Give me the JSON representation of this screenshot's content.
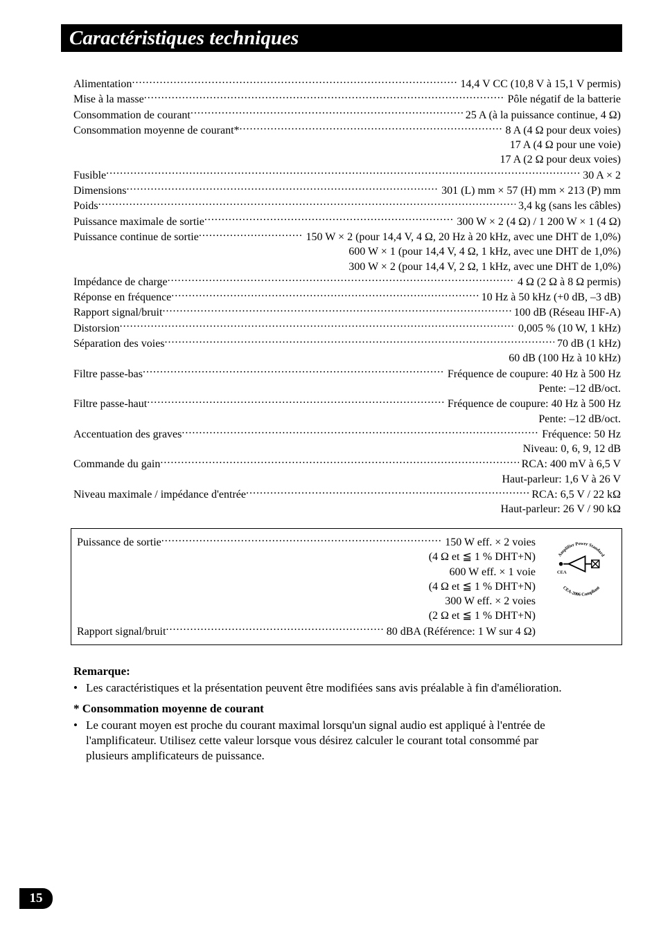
{
  "title": "Caractéristiques techniques",
  "page_number": "15",
  "specs": [
    {
      "label": "Alimentation ",
      "value": " 14,4 V CC (10,8 V à 15,1 V permis)"
    },
    {
      "label": "Mise à la masse ",
      "value": " Pôle négatif de la batterie"
    },
    {
      "label": "Consommation de courant ",
      "value": " 25 A (à la puissance continue, 4 Ω)"
    },
    {
      "label": "Consommation moyenne de courant* ",
      "value": " 8 A (4 Ω pour deux voies)",
      "cont": [
        "17 A (4 Ω pour une voie)",
        "17 A (2 Ω pour deux voies)"
      ]
    },
    {
      "label": "Fusible ",
      "value": " 30 A × 2"
    },
    {
      "label": "Dimensions ",
      "value": " 301 (L) mm × 57 (H) mm × 213 (P) mm"
    },
    {
      "label": "Poids ",
      "value": " 3,4 kg (sans les câbles)"
    },
    {
      "label": "Puissance maximale de sortie ",
      "value": " 300 W × 2 (4 Ω) / 1 200 W × 1 (4 Ω)"
    },
    {
      "label": "Puissance continue de sortie ",
      "value": " 150 W × 2 (pour 14,4 V, 4 Ω, 20 Hz à 20 kHz, avec une DHT de 1,0%)",
      "cont": [
        "600 W × 1 (pour 14,4 V, 4 Ω, 1 kHz, avec une DHT de 1,0%)",
        "300 W × 2 (pour 14,4 V, 2 Ω, 1 kHz, avec une DHT de 1,0%)"
      ]
    },
    {
      "label": "Impédance de charge ",
      "value": " 4 Ω (2 Ω à 8 Ω permis)"
    },
    {
      "label": "Réponse en fréquence ",
      "value": " 10 Hz à 50 kHz (+0 dB, –3 dB)"
    },
    {
      "label": "Rapport signal/bruit ",
      "value": " 100 dB (Réseau IHF-A)"
    },
    {
      "label": "Distorsion ",
      "value": " 0,005 % (10 W, 1 kHz)"
    },
    {
      "label": "Séparation des voies ",
      "value": " 70 dB (1 kHz)",
      "cont": [
        "60 dB (100 Hz à 10 kHz)"
      ]
    },
    {
      "label": "Filtre passe-bas ",
      "value": " Fréquence de coupure: 40 Hz à 500 Hz",
      "cont": [
        "Pente: –12 dB/oct."
      ]
    },
    {
      "label": "Filtre passe-haut ",
      "value": " Fréquence de coupure: 40 Hz à 500 Hz",
      "cont": [
        "Pente: –12 dB/oct."
      ]
    },
    {
      "label": "Accentuation des graves ",
      "value": " Fréquence: 50 Hz",
      "cont": [
        "Niveau: 0, 6, 9, 12 dB"
      ]
    },
    {
      "label": "Commande du gain ",
      "value": " RCA: 400 mV à 6,5 V",
      "cont": [
        "Haut-parleur: 1,6 V à 26 V"
      ]
    },
    {
      "label": "Niveau maximale / impédance d'entrée ",
      "value": " RCA: 6,5 V / 22 kΩ",
      "cont": [
        "Haut-parleur: 26 V / 90 kΩ"
      ]
    }
  ],
  "box": {
    "rows": [
      {
        "label": "Puissance de sortie ",
        "value": " 150 W eff. × 2 voies",
        "cont": [
          "(4 Ω et ≦ 1 % DHT+N)",
          "600 W eff. × 1 voie",
          "(4 Ω et ≦ 1 % DHT+N)",
          "300 W eff. × 2 voies",
          "(2 Ω et ≦ 1 % DHT+N)"
        ]
      },
      {
        "label": "Rapport signal/bruit ",
        "value": " 80 dBA (Référence: 1 W sur 4 Ω)"
      }
    ],
    "badge": {
      "top_text": "Amplifier Power Standard",
      "bottom_text": "CEA-2006 Compliant",
      "cea_label": "CEA"
    }
  },
  "notes": {
    "heading1": "Remarque:",
    "bullet1": "Les caractéristiques et la présentation peuvent être modifiées sans avis préalable à fin d'amélioration.",
    "heading2": "*  Consommation moyenne de courant",
    "bullet2": "Le courant moyen est proche du courant maximal lorsqu'un signal audio est appliqué à l'entrée de l'amplificateur. Utilisez cette valeur lorsque vous désirez calculer le courant total consommé par plusieurs amplificateurs de puissance."
  }
}
